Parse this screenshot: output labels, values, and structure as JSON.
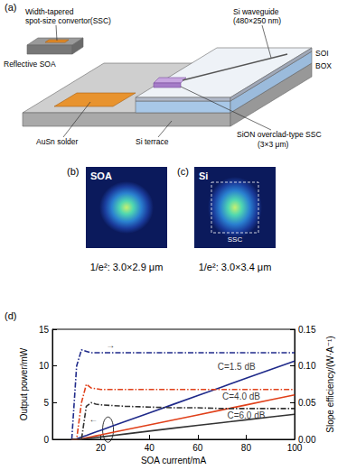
{
  "panels": {
    "a": {
      "label": "(a)",
      "ssc_label": [
        "Width-tapered",
        "spot-size convertor(SSC)"
      ],
      "soa_label": "Reflective SOA",
      "waveguide_label": [
        "Si waveguide",
        "(480×250 nm)"
      ],
      "soi_label": "SOI",
      "box_label": "BOX",
      "sion_label": [
        "SiON overclad-type SSC",
        "(3×3 μm)"
      ],
      "solder_label": "AuSn solder",
      "terrace_label": "Si terrace"
    },
    "b": {
      "label": "(b)",
      "tag": "SOA",
      "caption": "1/e²: 3.0×2.9 μm"
    },
    "c": {
      "label": "(c)",
      "tag": "Si",
      "box_label": "SSC",
      "caption": "1/e²: 3.0×3.4 μm"
    },
    "d": {
      "label": "(d)"
    }
  },
  "chart_data": {
    "type": "line",
    "x_label": "SOA current/mA",
    "y_label": "Output power/mW",
    "y2_label": "Slope efficiency/(W·A⁻¹)",
    "xlim": [
      0,
      100
    ],
    "xticks": [
      20,
      40,
      60,
      80,
      100
    ],
    "ylim": [
      0,
      15
    ],
    "yticks": [
      0,
      5,
      10,
      15
    ],
    "y2lim": [
      0,
      0.15
    ],
    "y2ticks": [
      {
        "value": 0,
        "label": "0.00"
      },
      {
        "value": 0.05,
        "label": "0.05"
      },
      {
        "value": 0.1,
        "label": "0.10"
      },
      {
        "value": 0.15,
        "label": "0.15"
      }
    ],
    "grid": false,
    "x": [
      8,
      10,
      12,
      14,
      16,
      18,
      20,
      25,
      30,
      40,
      50,
      60,
      70,
      80,
      90,
      100
    ],
    "series": [
      {
        "name": "C=1.5 dB",
        "color": "#1f2a8a",
        "line_style": "solid",
        "values": [
          0,
          0.06,
          0.3,
          0.53,
          0.77,
          1.0,
          1.24,
          1.83,
          2.42,
          3.6,
          4.78,
          5.96,
          7.14,
          8.32,
          9.5,
          10.68
        ]
      },
      {
        "name": "C=4.0 dB",
        "color": "#e0401a",
        "line_style": "solid",
        "values": [
          0,
          0,
          0.07,
          0.2,
          0.34,
          0.48,
          0.61,
          0.95,
          1.29,
          1.97,
          2.65,
          3.33,
          4.01,
          4.69,
          5.37,
          6.05
        ]
      },
      {
        "name": "C=6.0 dB",
        "color": "#333333",
        "line_style": "solid",
        "values": [
          0,
          0,
          0,
          0.08,
          0.16,
          0.24,
          0.32,
          0.52,
          0.72,
          1.12,
          1.52,
          1.9,
          2.28,
          2.66,
          3.04,
          3.42
        ]
      },
      {
        "name": "C=1.5 dB",
        "color": "#1f2a8a",
        "line_style": "dashdot",
        "axis": "y2",
        "values": [
          0,
          0.1,
          0.122,
          0.12,
          0.118,
          0.118,
          0.118,
          0.118,
          0.118,
          0.118,
          0.118,
          0.118,
          0.118,
          0.118,
          0.118,
          0.118
        ]
      },
      {
        "name": "C=4.0 dB",
        "color": "#e0401a",
        "line_style": "dashdot",
        "axis": "y2",
        "values": [
          0,
          0,
          0.05,
          0.075,
          0.07,
          0.069,
          0.068,
          0.068,
          0.068,
          0.068,
          0.068,
          0.068,
          0.068,
          0.068,
          0.068,
          0.068
        ]
      },
      {
        "name": "C=6.0 dB",
        "color": "#333333",
        "line_style": "dashdot",
        "axis": "y2",
        "values": [
          0,
          0,
          0,
          0.045,
          0.05,
          0.048,
          0.047,
          0.046,
          0.045,
          0.044,
          0.043,
          0.043,
          0.042,
          0.042,
          0.042,
          0.042
        ]
      }
    ],
    "annotations": [
      {
        "text": "C=1.5 dB",
        "x": 76,
        "y": 9.9
      },
      {
        "text": "C=4.0 dB",
        "x": 78,
        "y": 5.9
      },
      {
        "text": "C=6.0 dB",
        "x": 80,
        "y": 3.2
      },
      {
        "text": "→",
        "x": 24,
        "y": 12.9
      },
      {
        "text": "←",
        "x": 17,
        "y": 2.8
      }
    ]
  }
}
